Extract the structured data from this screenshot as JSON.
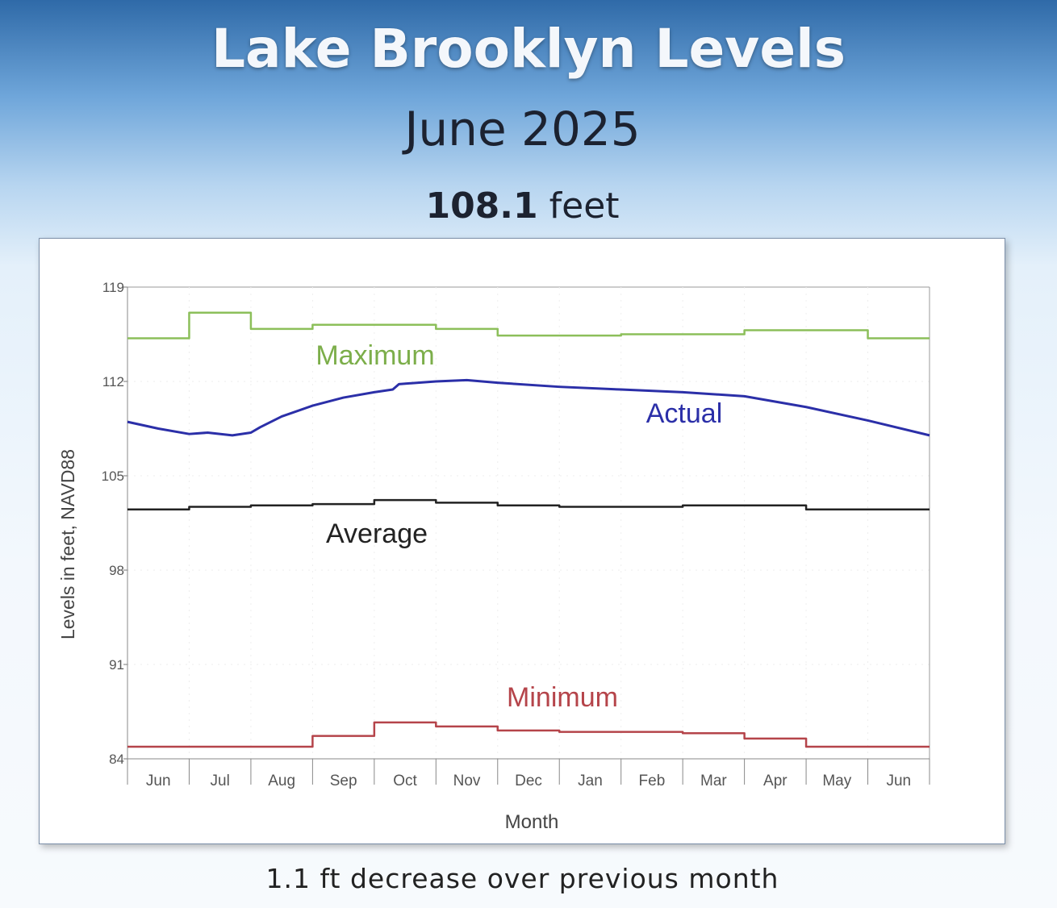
{
  "header": {
    "title": "Lake Brooklyn Levels",
    "subtitle": "June 2025",
    "level_value": "108.1",
    "level_unit": "feet"
  },
  "caption": "1.1 ft decrease over previous month",
  "chart_data": {
    "type": "line",
    "title": "",
    "xlabel": "Month",
    "ylabel": "Levels in feet, NAVD88",
    "ylim": [
      84,
      119
    ],
    "yticks": [
      "84",
      "91",
      "98",
      "105",
      "112",
      "119"
    ],
    "categories": [
      "Jun",
      "Jul",
      "Aug",
      "Sep",
      "Oct",
      "Nov",
      "Dec",
      "Jan",
      "Feb",
      "Mar",
      "Apr",
      "May",
      "Jun"
    ],
    "grid": true,
    "series": [
      {
        "name": "Maximum",
        "style": "step",
        "color": "#8cbf5a",
        "values": [
          115.2,
          117.1,
          115.9,
          116.2,
          116.2,
          115.9,
          115.4,
          115.4,
          115.5,
          115.5,
          115.8,
          115.8,
          115.2
        ]
      },
      {
        "name": "Average",
        "style": "step",
        "color": "#222222",
        "values": [
          102.5,
          102.7,
          102.8,
          102.9,
          103.2,
          103.0,
          102.8,
          102.7,
          102.7,
          102.8,
          102.8,
          102.5,
          102.5
        ]
      },
      {
        "name": "Minimum",
        "style": "step",
        "color": "#b5444a",
        "values": [
          84.9,
          84.9,
          84.9,
          85.7,
          86.7,
          86.4,
          86.1,
          86.0,
          86.0,
          85.9,
          85.5,
          84.9,
          84.9
        ]
      },
      {
        "name": "Actual",
        "style": "line",
        "color": "#2b2fa8",
        "x": [
          0,
          0.5,
          1,
          1.3,
          1.7,
          2,
          2.15,
          2.5,
          3,
          3.5,
          4,
          4.3,
          4.4,
          5,
          5.5,
          6,
          7,
          8,
          9,
          10,
          11,
          12,
          13
        ],
        "values": [
          109.0,
          108.5,
          108.1,
          108.2,
          108.0,
          108.2,
          108.6,
          109.4,
          110.2,
          110.8,
          111.2,
          111.4,
          111.8,
          112.0,
          112.1,
          111.9,
          111.6,
          111.4,
          111.2,
          110.9,
          110.1,
          109.1,
          108.0
        ]
      }
    ]
  }
}
